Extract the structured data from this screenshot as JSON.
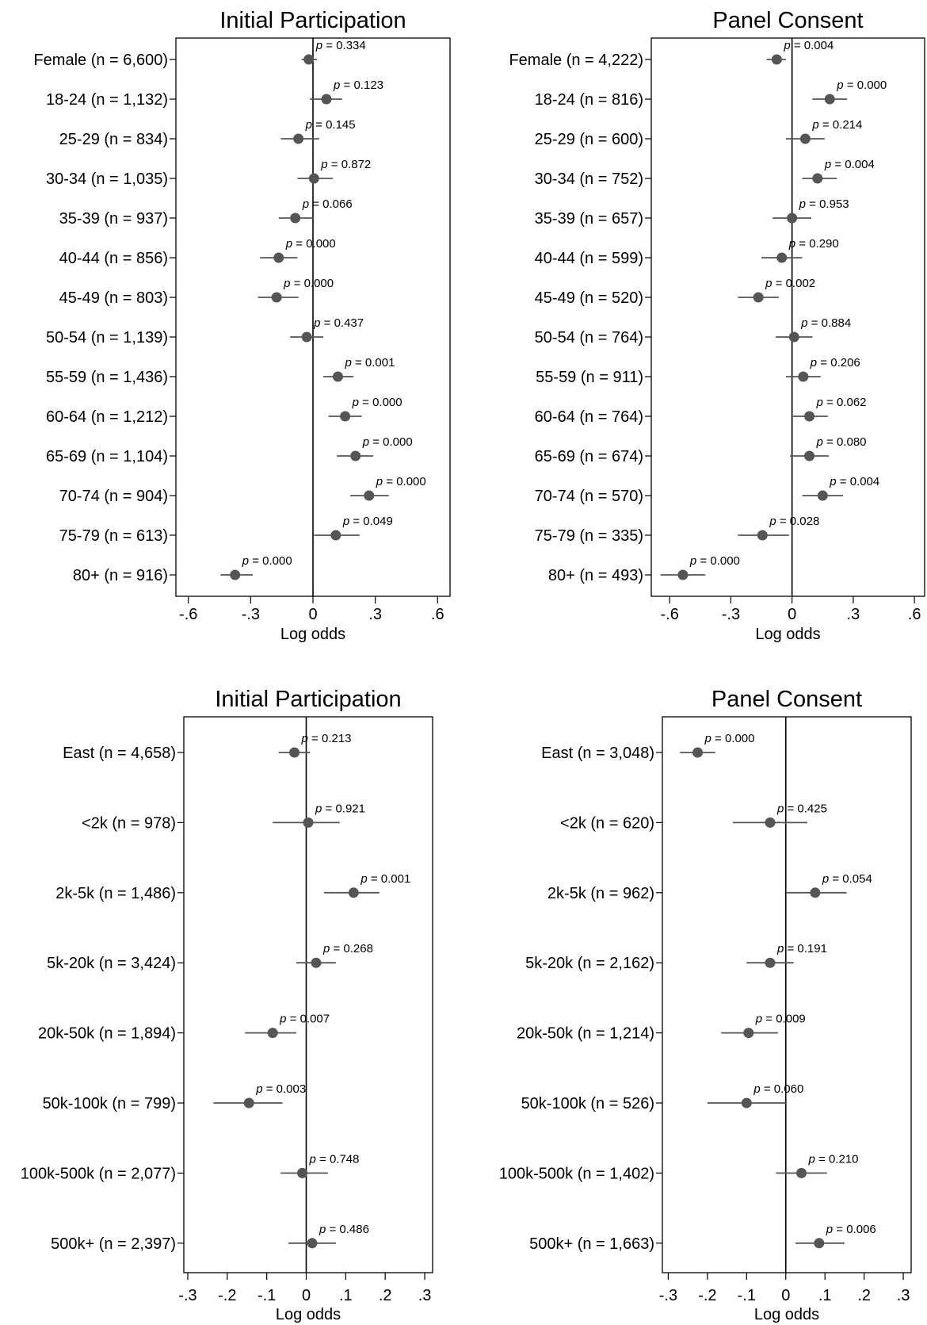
{
  "chart_data": [
    {
      "type": "coefficient-plot",
      "title": "Initial Participation",
      "xlabel": "Log odds",
      "xlim": [
        -0.66,
        0.66
      ],
      "xticks": [
        -0.6,
        -0.3,
        0,
        0.3,
        0.6
      ],
      "xtick_labels": [
        "-.6",
        "-.3",
        "0",
        ".3",
        ".6"
      ],
      "reference_line": 0,
      "categories": [
        "Female (n = 6,600)",
        "18-24 (n = 1,132)",
        "25-29 (n = 834)",
        "30-34 (n = 1,035)",
        "35-39 (n = 937)",
        "40-44 (n = 856)",
        "45-49 (n = 803)",
        "50-54 (n = 1,139)",
        "55-59 (n = 1,436)",
        "60-64 (n = 1,212)",
        "65-69 (n = 1,104)",
        "70-74 (n = 904)",
        "75-79 (n = 613)",
        "80+ (n = 916)"
      ],
      "estimate": [
        -0.02,
        0.065,
        -0.07,
        0.005,
        -0.085,
        -0.165,
        -0.175,
        -0.03,
        0.12,
        0.155,
        0.205,
        0.27,
        0.11,
        -0.375
      ],
      "ci_low": [
        -0.055,
        -0.015,
        -0.155,
        -0.075,
        -0.165,
        -0.255,
        -0.265,
        -0.11,
        0.05,
        0.075,
        0.115,
        0.18,
        0.005,
        -0.445
      ],
      "ci_high": [
        0.02,
        0.14,
        0.03,
        0.095,
        0.005,
        -0.075,
        -0.07,
        0.05,
        0.195,
        0.235,
        0.29,
        0.365,
        0.225,
        -0.29
      ],
      "p_labels": [
        "p = 0.334",
        "p = 0.123",
        "p = 0.145",
        "p = 0.872",
        "p = 0.066",
        "p = 0.000",
        "p = 0.000",
        "p = 0.437",
        "p = 0.001",
        "p = 0.000",
        "p = 0.000",
        "p = 0.000",
        "p = 0.049",
        "p = 0.000"
      ]
    },
    {
      "type": "coefficient-plot",
      "title": "Panel Consent",
      "xlabel": "Log odds",
      "xlim": [
        -0.69,
        0.65
      ],
      "xticks": [
        -0.6,
        -0.3,
        0,
        0.3,
        0.6
      ],
      "xtick_labels": [
        "-.6",
        "-.3",
        "0",
        ".3",
        ".6"
      ],
      "reference_line": 0,
      "categories": [
        "Female (n = 4,222)",
        "18-24 (n = 816)",
        "25-29 (n = 600)",
        "30-34 (n = 752)",
        "35-39 (n = 657)",
        "40-44 (n = 599)",
        "45-49 (n = 520)",
        "50-54 (n = 764)",
        "55-59 (n = 911)",
        "60-64 (n = 764)",
        "65-69 (n = 674)",
        "70-74 (n = 570)",
        "75-79 (n = 335)",
        "80+ (n = 493)"
      ],
      "estimate": [
        -0.075,
        0.185,
        0.065,
        0.125,
        0.0,
        -0.05,
        -0.165,
        0.01,
        0.055,
        0.085,
        0.085,
        0.15,
        -0.145,
        -0.535
      ],
      "ci_low": [
        -0.125,
        0.1,
        -0.03,
        0.05,
        -0.095,
        -0.15,
        -0.265,
        -0.08,
        -0.03,
        0.005,
        -0.01,
        0.05,
        -0.265,
        -0.645
      ],
      "ci_high": [
        -0.03,
        0.27,
        0.16,
        0.22,
        0.095,
        0.05,
        -0.065,
        0.1,
        0.14,
        0.175,
        0.18,
        0.25,
        -0.015,
        -0.425
      ],
      "p_labels": [
        "p = 0.004",
        "p = 0.000",
        "p = 0.214",
        "p = 0.004",
        "p = 0.953",
        "p = 0.290",
        "p = 0.002",
        "p = 0.884",
        "p = 0.206",
        "p = 0.062",
        "p = 0.080",
        "p = 0.004",
        "p = 0.028",
        "p = 0.000"
      ]
    },
    {
      "type": "coefficient-plot",
      "title": "Initial Participation",
      "xlabel": "Log odds",
      "xlim": [
        -0.31,
        0.32
      ],
      "xticks": [
        -0.3,
        -0.2,
        -0.1,
        0,
        0.1,
        0.2,
        0.3
      ],
      "xtick_labels": [
        "-.3",
        "-.2",
        "-.1",
        "0",
        ".1",
        ".2",
        ".3"
      ],
      "reference_line": 0,
      "categories": [
        "East (n = 4,658)",
        "<2k (n = 978)",
        "2k-5k (n = 1,486)",
        "5k-20k (n = 3,424)",
        "20k-50k (n = 1,894)",
        "50k-100k (n = 799)",
        "100k-500k (n = 2,077)",
        "500k+ (n = 2,397)"
      ],
      "estimate": [
        -0.03,
        0.005,
        0.12,
        0.025,
        -0.085,
        -0.145,
        -0.01,
        0.015
      ],
      "ci_low": [
        -0.07,
        -0.085,
        0.045,
        -0.025,
        -0.155,
        -0.235,
        -0.065,
        -0.045
      ],
      "ci_high": [
        0.01,
        0.085,
        0.185,
        0.075,
        -0.025,
        -0.06,
        0.055,
        0.075
      ],
      "p_labels": [
        "p = 0.213",
        "p = 0.921",
        "p = 0.001",
        "p = 0.268",
        "p = 0.007",
        "p = 0.003",
        "p = 0.748",
        "p = 0.486"
      ]
    },
    {
      "type": "coefficient-plot",
      "title": "Panel Consent",
      "xlabel": "Log odds",
      "xlim": [
        -0.315,
        0.32
      ],
      "xticks": [
        -0.3,
        -0.2,
        -0.1,
        0,
        0.1,
        0.2,
        0.3
      ],
      "xtick_labels": [
        "-.3",
        "-.2",
        "-.1",
        "0",
        ".1",
        ".2",
        ".3"
      ],
      "reference_line": 0,
      "categories": [
        "East (n = 3,048)",
        "<2k (n = 620)",
        "2k-5k (n = 962)",
        "5k-20k (n = 2,162)",
        "20k-50k (n = 1,214)",
        "50k-100k (n = 526)",
        "100k-500k (n = 1,402)",
        "500k+ (n = 1,663)"
      ],
      "estimate": [
        -0.225,
        -0.04,
        0.075,
        -0.04,
        -0.095,
        -0.1,
        0.04,
        0.085
      ],
      "ci_low": [
        -0.27,
        -0.135,
        0.0,
        -0.1,
        -0.165,
        -0.2,
        -0.025,
        0.025
      ],
      "ci_high": [
        -0.18,
        0.055,
        0.155,
        0.02,
        -0.02,
        0.0,
        0.105,
        0.15
      ],
      "p_labels": [
        "p = 0.000",
        "p = 0.425",
        "p = 0.054",
        "p = 0.191",
        "p = 0.009",
        "p = 0.060",
        "p = 0.210",
        "p = 0.006"
      ]
    }
  ],
  "colors": {
    "marker": "#555555",
    "ci_line": "#555555",
    "ref_line": "#000000",
    "frame": "#000000"
  }
}
